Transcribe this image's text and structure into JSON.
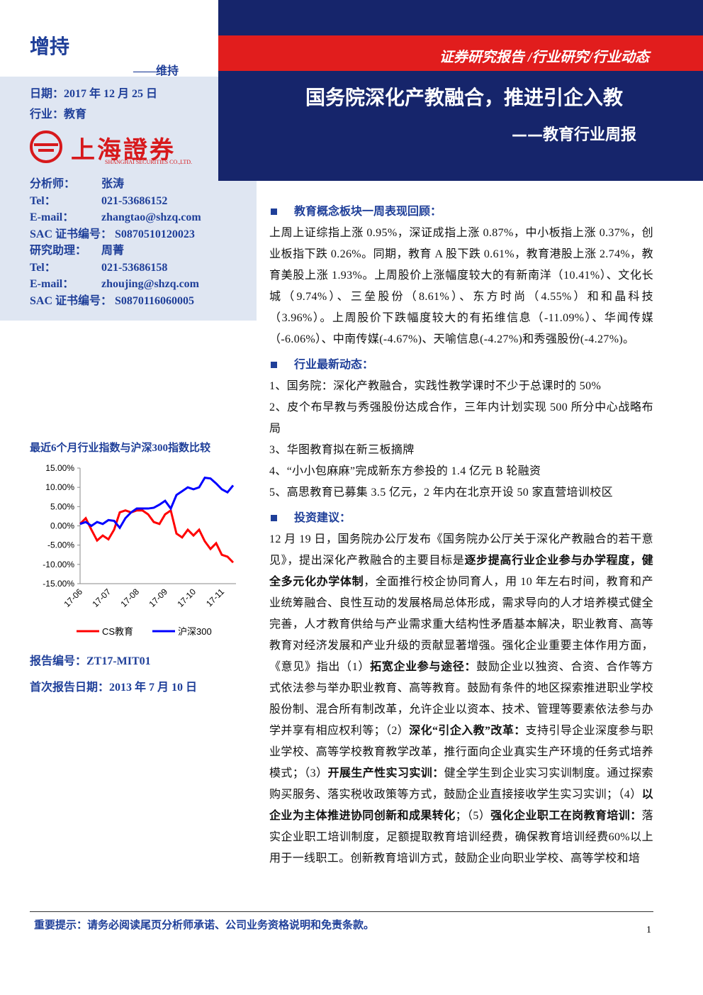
{
  "rating": {
    "current": "增持",
    "previous": "——维持"
  },
  "info": {
    "date": "日期：2017 年 12 月 25 日",
    "industry": "行业：教育"
  },
  "logo": {
    "name": "上海證券",
    "english": "SHANGHAI SECURITIES CO.,LTD."
  },
  "analysts": [
    [
      "分析师：",
      "张涛"
    ],
    [
      "Tel：",
      "021-53686152"
    ],
    [
      "E-mail：",
      "zhangtao@shzq.com"
    ],
    [
      "SAC 证书编号：",
      "S0870510120023"
    ],
    [
      "研究助理：",
      "周菁"
    ],
    [
      "Tel：",
      "021-53686158"
    ],
    [
      "E-mail：",
      "zhoujing@shzq.com"
    ],
    [
      "SAC 证书编号：",
      "S0870116060005"
    ]
  ],
  "header": {
    "category": "证券研究报告 /行业研究/行业动态",
    "title": "国务院深化产教融合，推进引企入教",
    "subtitle": "——教育行业周报"
  },
  "chart_data": {
    "type": "line",
    "title": "最近6个月行业指数与沪深300指数比较",
    "categories": [
      "17-06",
      null,
      null,
      null,
      null,
      "17-07",
      null,
      null,
      null,
      null,
      "17-08",
      null,
      null,
      null,
      null,
      "17-09",
      null,
      null,
      null,
      null,
      "17-10",
      null,
      null,
      null,
      null,
      "17-11",
      null,
      null
    ],
    "series": [
      {
        "name": "CS教育",
        "color": "#ff0000",
        "values": [
          0.5,
          2,
          -1,
          -3.8,
          -2.5,
          -3.5,
          -1,
          3.5,
          4,
          3.5,
          4,
          4,
          3,
          1,
          0.5,
          3,
          4,
          -2,
          -3,
          -1,
          -2.5,
          -1,
          -4,
          -6,
          -4.5,
          -7.5,
          -8,
          -9.5
        ]
      },
      {
        "name": "沪深300",
        "color": "#0000ff",
        "values": [
          0.5,
          1,
          0,
          1,
          0.5,
          1.5,
          1.3,
          -0.5,
          2,
          3.5,
          4.5,
          4.5,
          4.5,
          4.7,
          5.5,
          6.5,
          4.5,
          8,
          9,
          10,
          9.5,
          10,
          12.5,
          12.3,
          11,
          9.5,
          8.7,
          10.5
        ]
      }
    ],
    "ylim": [
      -15,
      15
    ],
    "yticks": [
      {
        "value": 15,
        "label": "15.00%"
      },
      {
        "value": 10,
        "label": "10.00%"
      },
      {
        "value": 5,
        "label": "5.00%"
      },
      {
        "value": 0,
        "label": "0.00%"
      },
      {
        "value": -5,
        "label": "-5.00%"
      },
      {
        "value": -10,
        "label": "-10.00%"
      },
      {
        "value": -15,
        "label": "-15.00%"
      }
    ],
    "legend": "bottom"
  },
  "report": {
    "number": "报告编号：ZT17-MIT01",
    "first_date": "首次报告日期：2013 年 7 月 10 日"
  },
  "sections": [
    {
      "heading": "教育概念板块一周表现回顾：",
      "paragraphs": [
        "上周上证综指上涨 0.95%，深证成指上涨 0.87%，中小板指上涨 0.37%，创业板指下跌 0.26%。同期，教育 A 股下跌 0.61%，教育港股上涨 2.74%，教育美股上涨 1.93%。上周股价上涨幅度较大的有新南洋（10.41%）、文化长城（9.74%）、三垒股份（8.61%）、东方时尚（4.55%）和和晶科技（3.96%）。上周股价下跌幅度较大的有拓维信息（-11.09%）、华闻传媒（-6.06%）、中南传媒(-4.67%)、天喻信息(-4.27%)和秀强股份(-4.27%)。"
      ]
    },
    {
      "heading": "行业最新动态：",
      "paragraphs": [
        "1、国务院：深化产教融合，实践性教学课时不少于总课时的 50%",
        "2、皮个布早教与秀强股份达成合作，三年内计划实现 500 所分中心战略布局",
        "3、华图教育拟在新三板摘牌",
        "4、“小小包麻麻”完成新东方参投的 1.4 亿元 B 轮融资",
        "5、高思教育已募集 3.5 亿元，2 年内在北京开设 50 家直营培训校区"
      ]
    },
    {
      "heading": "投资建议：",
      "paragraphs": [
        [
          {
            "text": "12 月 19 日，国务院办公厅发布《国务院办公厅关于深化产教融合的若干意见》，提出深化产教融合的主要目标是",
            "bold": false
          },
          {
            "text": "逐步提高行业企业参与办学程度，健全多元化办学体制",
            "bold": true
          },
          {
            "text": "，全面推行校企协同育人，用 10 年左右时间，教育和产业统筹融合、良性互动的发展格局总体形成，需求导向的人才培养模式健全完善，人才教育供给与产业需求重大结构性矛盾基本解决，职业教育、高等教育对经济发展和产业升级的贡献显著增强。强化企业重要主体作用方面，《意见》指出（1）",
            "bold": false
          },
          {
            "text": "拓宽企业参与途径：",
            "bold": true
          },
          {
            "text": "鼓励企业以独资、合资、合作等方式依法参与举办职业教育、高等教育。鼓励有条件的地区探索推进职业学校股份制、混合所有制改革，允许企业以资本、技术、管理等要素依法参与办学并享有相应权利等；（2）",
            "bold": false
          },
          {
            "text": "深化“引企入教”改革：",
            "bold": true
          },
          {
            "text": "支持引导企业深度参与职业学校、高等学校教育教学改革，推行面向企业真实生产环境的任务式培养模式；（3）",
            "bold": false
          },
          {
            "text": "开展生产性实习实训：",
            "bold": true
          },
          {
            "text": "健全学生到企业实习实训制度。通过探索购买服务、落实税收政策等方式，鼓励企业直接接收学生实习实训；（4）",
            "bold": false
          },
          {
            "text": "以企业为主体推进协同创新和成果转化",
            "bold": true
          },
          {
            "text": "；（5）",
            "bold": false
          },
          {
            "text": "强化企业职工在岗教育培训：",
            "bold": true
          },
          {
            "text": "落实企业职工培训制度，足额提取教育培训经费，确保教育培训经费60%以上用于一线职工。创新教育培训方式，鼓励企业向职业学校、高等学校和培",
            "bold": false
          }
        ]
      ]
    }
  ],
  "footer": {
    "notice": "重要提示：请务必阅读尾页分析师承诺、公司业务资格说明和免责条款。",
    "page": 1
  }
}
